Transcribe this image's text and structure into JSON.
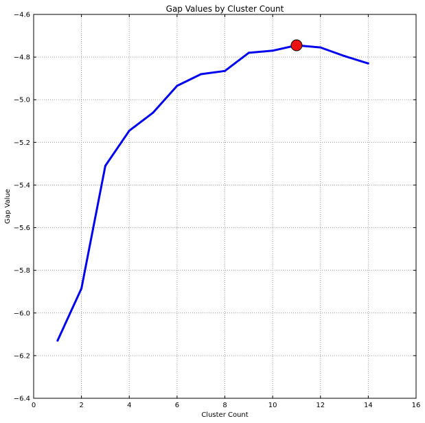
{
  "chart_data": {
    "type": "line",
    "title": "Gap Values by Cluster Count",
    "xlabel": "Cluster Count",
    "ylabel": "Gap Value",
    "xlim": [
      0,
      16
    ],
    "ylim": [
      -6.4,
      -4.6
    ],
    "grid": true,
    "legend": "none",
    "xticks": [
      0,
      2,
      4,
      6,
      8,
      10,
      12,
      14,
      16
    ],
    "yticks": [
      -6.4,
      -6.2,
      -6.0,
      -5.8,
      -5.6,
      -5.4,
      -5.2,
      -5.0,
      -4.8,
      -4.6
    ],
    "series": [
      {
        "color": "#0000ee",
        "x": [
          1,
          2,
          3,
          4,
          5,
          6,
          7,
          8,
          9,
          10,
          11,
          12,
          13,
          14
        ],
        "y": [
          -6.13,
          -5.885,
          -5.31,
          -5.145,
          -5.06,
          -4.935,
          -4.88,
          -4.865,
          -4.78,
          -4.77,
          -4.745,
          -4.755,
          -4.795,
          -4.83
        ]
      }
    ],
    "highlight": {
      "x": 11,
      "y": -4.745,
      "color": "#ee1111"
    }
  }
}
